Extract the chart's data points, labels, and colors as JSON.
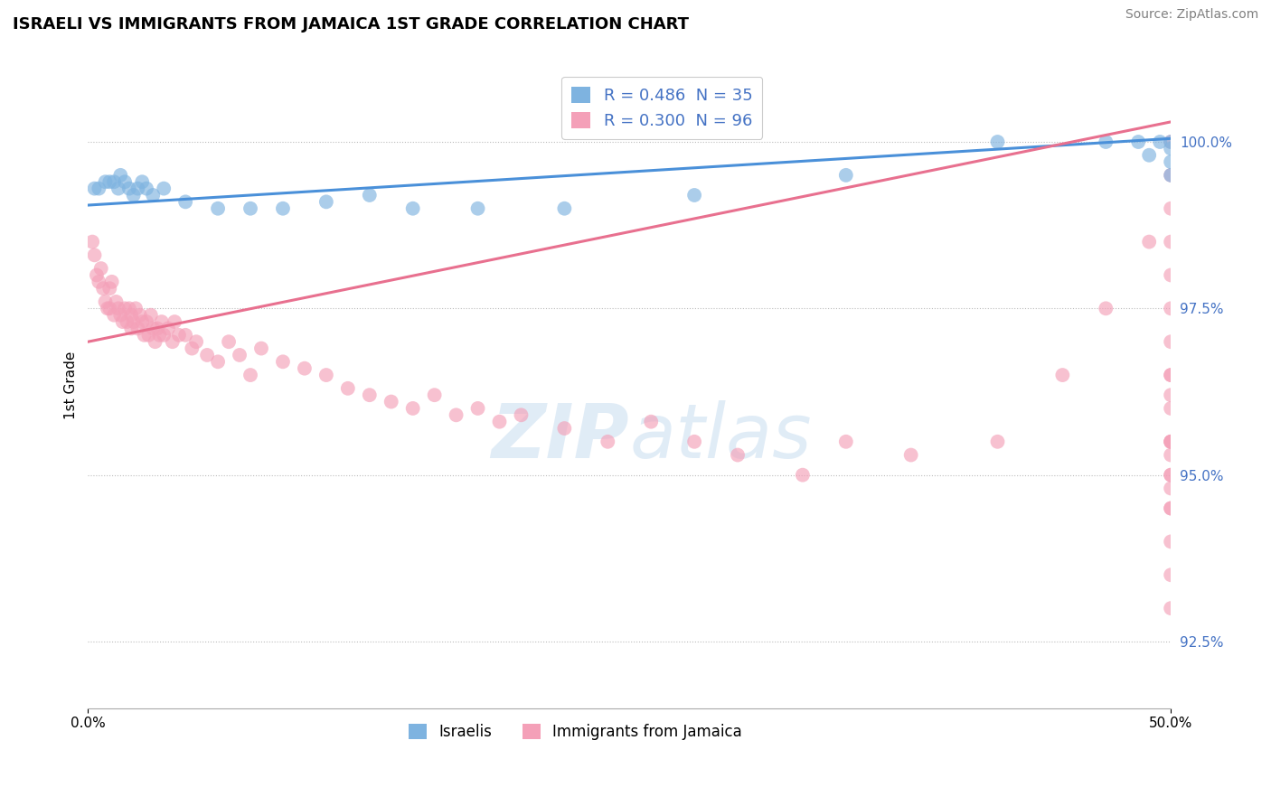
{
  "title": "ISRAELI VS IMMIGRANTS FROM JAMAICA 1ST GRADE CORRELATION CHART",
  "source": "Source: ZipAtlas.com",
  "ylabel": "1st Grade",
  "xlim": [
    0.0,
    50.0
  ],
  "ylim": [
    91.5,
    101.2
  ],
  "yticks": [
    92.5,
    95.0,
    97.5,
    100.0
  ],
  "ytick_labels": [
    "92.5%",
    "95.0%",
    "97.5%",
    "100.0%"
  ],
  "xtick_positions": [
    0,
    50
  ],
  "xtick_labels": [
    "0.0%",
    "50.0%"
  ],
  "legend_R_israeli": "R = 0.486",
  "legend_N_israeli": "N = 35",
  "legend_R_jamaica": "R = 0.300",
  "legend_N_jamaica": "N = 96",
  "israeli_color": "#7EB3E0",
  "jamaican_color": "#F4A0B8",
  "trendline_israeli_color": "#4A90D9",
  "trendline_jamaican_color": "#E8708F",
  "israeli_scatter_x": [
    0.3,
    0.5,
    0.8,
    1.0,
    1.2,
    1.4,
    1.5,
    1.7,
    1.9,
    2.1,
    2.3,
    2.5,
    2.7,
    3.0,
    3.5,
    4.5,
    6.0,
    7.5,
    9.0,
    11.0,
    13.0,
    15.0,
    18.0,
    22.0,
    28.0,
    35.0,
    42.0,
    47.0,
    48.5,
    49.0,
    49.5,
    50.0,
    50.0,
    50.0,
    50.0
  ],
  "israeli_scatter_y": [
    99.3,
    99.3,
    99.4,
    99.4,
    99.4,
    99.3,
    99.5,
    99.4,
    99.3,
    99.2,
    99.3,
    99.4,
    99.3,
    99.2,
    99.3,
    99.1,
    99.0,
    99.0,
    99.0,
    99.1,
    99.2,
    99.0,
    99.0,
    99.0,
    99.2,
    99.5,
    100.0,
    100.0,
    100.0,
    99.8,
    100.0,
    99.5,
    99.7,
    99.9,
    100.0
  ],
  "jamaican_scatter_x": [
    0.2,
    0.3,
    0.4,
    0.5,
    0.6,
    0.7,
    0.8,
    0.9,
    1.0,
    1.0,
    1.1,
    1.2,
    1.3,
    1.4,
    1.5,
    1.6,
    1.7,
    1.8,
    1.9,
    2.0,
    2.0,
    2.1,
    2.2,
    2.3,
    2.4,
    2.5,
    2.6,
    2.7,
    2.8,
    2.9,
    3.0,
    3.1,
    3.2,
    3.3,
    3.4,
    3.5,
    3.7,
    3.9,
    4.0,
    4.2,
    4.5,
    4.8,
    5.0,
    5.5,
    6.0,
    6.5,
    7.0,
    7.5,
    8.0,
    9.0,
    10.0,
    11.0,
    12.0,
    13.0,
    14.0,
    15.0,
    16.0,
    17.0,
    18.0,
    19.0,
    20.0,
    22.0,
    24.0,
    26.0,
    28.0,
    30.0,
    33.0,
    35.0,
    38.0,
    42.0,
    45.0,
    47.0,
    49.0,
    50.0,
    50.0,
    50.0,
    50.0,
    50.0,
    50.0,
    50.0,
    50.0,
    50.0,
    50.0,
    50.0,
    50.0,
    50.0,
    50.0,
    50.0,
    50.0,
    50.0,
    50.0,
    50.0,
    50.0,
    50.0,
    50.0,
    50.0
  ],
  "jamaican_scatter_y": [
    98.5,
    98.3,
    98.0,
    97.9,
    98.1,
    97.8,
    97.6,
    97.5,
    97.8,
    97.5,
    97.9,
    97.4,
    97.6,
    97.5,
    97.4,
    97.3,
    97.5,
    97.3,
    97.5,
    97.2,
    97.4,
    97.3,
    97.5,
    97.2,
    97.4,
    97.3,
    97.1,
    97.3,
    97.1,
    97.4,
    97.2,
    97.0,
    97.2,
    97.1,
    97.3,
    97.1,
    97.2,
    97.0,
    97.3,
    97.1,
    97.1,
    96.9,
    97.0,
    96.8,
    96.7,
    97.0,
    96.8,
    96.5,
    96.9,
    96.7,
    96.6,
    96.5,
    96.3,
    96.2,
    96.1,
    96.0,
    96.2,
    95.9,
    96.0,
    95.8,
    95.9,
    95.7,
    95.5,
    95.8,
    95.5,
    95.3,
    95.0,
    95.5,
    95.3,
    95.5,
    96.5,
    97.5,
    98.5,
    100.0,
    99.5,
    99.0,
    98.5,
    98.0,
    97.5,
    97.0,
    96.5,
    95.5,
    95.0,
    94.5,
    94.0,
    93.5,
    93.0,
    94.5,
    95.0,
    95.5,
    96.0,
    96.5,
    95.5,
    94.8,
    95.3,
    96.2
  ]
}
